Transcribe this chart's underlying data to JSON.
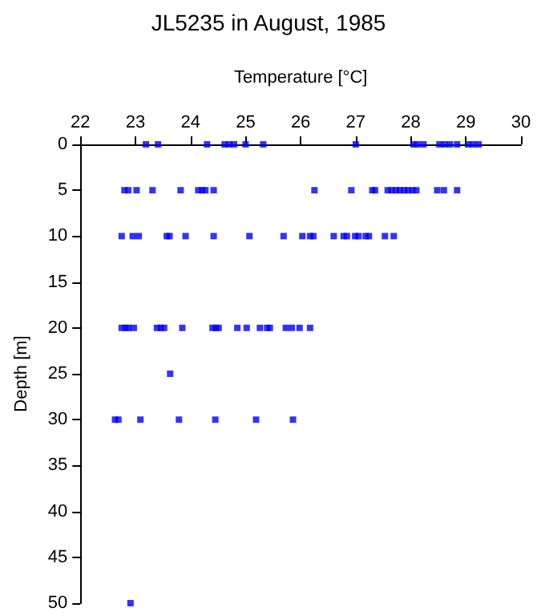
{
  "chart_data": {
    "type": "scatter",
    "title": "JL5235 in August, 1985",
    "xlabel": "Temperature [°C]",
    "ylabel": "Depth [m]",
    "xlim": [
      22,
      30
    ],
    "xticks": [
      22,
      23,
      24,
      25,
      26,
      27,
      28,
      29,
      30
    ],
    "ylim": [
      50,
      0
    ],
    "yticks": [
      0,
      5,
      10,
      15,
      20,
      25,
      30,
      35,
      40,
      45,
      50
    ],
    "grid": false,
    "marker": "square",
    "series": [
      {
        "color": "#0000ff",
        "x": [
          23.19,
          23.41,
          24.3,
          24.62,
          24.7,
          24.79,
          25.0,
          25.32,
          27.0,
          28.05,
          28.12,
          28.23,
          28.52,
          28.61,
          28.71,
          28.84,
          29.04,
          29.13,
          29.23,
          22.8,
          22.87,
          23.02,
          23.31,
          23.82,
          24.14,
          24.21,
          24.27,
          24.42,
          26.25,
          26.92,
          27.3,
          27.35,
          27.58,
          27.65,
          27.73,
          27.8,
          27.88,
          27.95,
          28.03,
          28.1,
          28.48,
          28.6,
          28.84,
          22.75,
          22.95,
          23.06,
          23.57,
          23.62,
          23.91,
          24.42,
          25.07,
          25.69,
          26.03,
          26.17,
          26.23,
          26.6,
          26.78,
          26.84,
          26.99,
          27.05,
          27.18,
          27.24,
          27.53,
          27.69,
          22.75,
          22.82,
          22.87,
          22.97,
          23.39,
          23.46,
          23.52,
          23.85,
          24.4,
          24.46,
          24.51,
          24.85,
          25.02,
          25.26,
          25.39,
          25.44,
          25.73,
          25.84,
          25.98,
          26.17,
          23.63,
          22.63,
          22.69,
          23.09,
          23.79,
          24.45,
          25.19,
          25.86,
          22.91
        ],
        "values": [
          0,
          0,
          0,
          0,
          0,
          0,
          0,
          0,
          0,
          0,
          0,
          0,
          0,
          0,
          0,
          0,
          0,
          0,
          0,
          5,
          5,
          5,
          5,
          5,
          5,
          5,
          5,
          5,
          5,
          5,
          5,
          5,
          5,
          5,
          5,
          5,
          5,
          5,
          5,
          5,
          5,
          5,
          5,
          10,
          10,
          10,
          10,
          10,
          10,
          10,
          10,
          10,
          10,
          10,
          10,
          10,
          10,
          10,
          10,
          10,
          10,
          10,
          10,
          10,
          20,
          20,
          20,
          20,
          20,
          20,
          20,
          20,
          20,
          20,
          20,
          20,
          20,
          20,
          20,
          20,
          20,
          20,
          20,
          20,
          25,
          30,
          30,
          30,
          30,
          30,
          30,
          30,
          50
        ]
      }
    ]
  }
}
